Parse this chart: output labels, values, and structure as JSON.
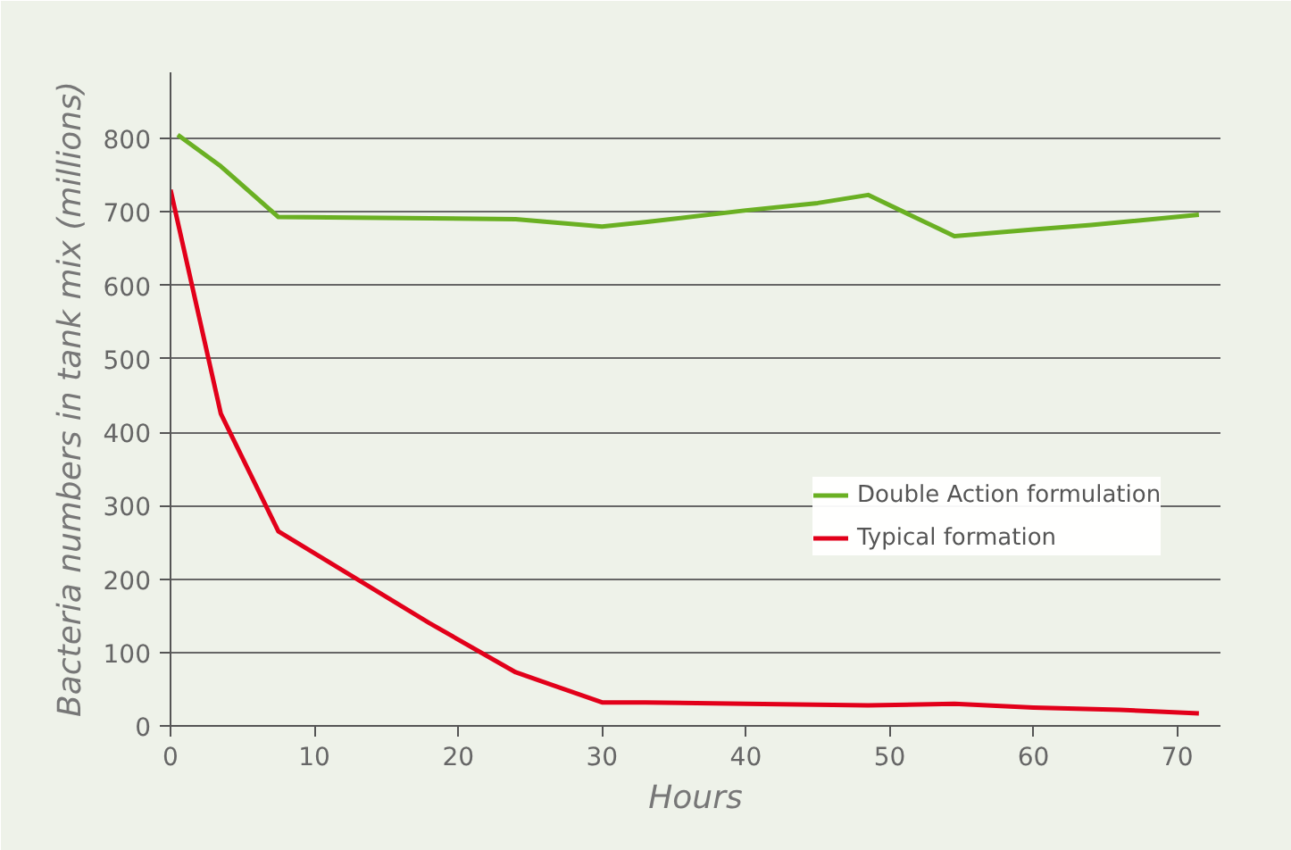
{
  "chart_data": {
    "type": "line",
    "xlabel": "Hours",
    "ylabel": "Bacteria numbers in tank mix (millions)",
    "xlim": [
      0,
      73
    ],
    "ylim": [
      0,
      890
    ],
    "xticks": [
      0,
      10,
      20,
      30,
      40,
      50,
      60,
      70
    ],
    "yticks": [
      0,
      100,
      200,
      300,
      400,
      500,
      600,
      700,
      800
    ],
    "grid": "y",
    "legend": "right",
    "marker": "none",
    "line_style": "solid",
    "series": [
      {
        "name": "Double Action formulation",
        "color": "#6ab023",
        "x": [
          0.5,
          3.5,
          7.5,
          24,
          30,
          33,
          40,
          45,
          48.5,
          54.5,
          60,
          64,
          71.5
        ],
        "values": [
          805,
          762,
          693,
          690,
          680,
          686,
          702,
          712,
          723,
          667,
          676,
          682,
          696
        ]
      },
      {
        "name": "Typical formation",
        "color": "#e2001a",
        "x": [
          0,
          3.5,
          7.5,
          18,
          24,
          30,
          33,
          40,
          48.5,
          54.5,
          60,
          66,
          71.5
        ],
        "values": [
          730,
          425,
          265,
          140,
          73,
          32,
          32,
          30,
          28,
          30,
          25,
          22,
          17
        ]
      }
    ]
  }
}
